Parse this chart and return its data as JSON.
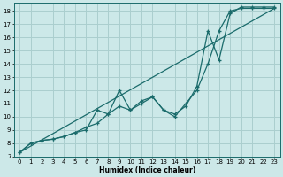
{
  "xlabel": "Humidex (Indice chaleur)",
  "background_color": "#cce8e8",
  "grid_color": "#aacece",
  "line_color": "#1a6b6b",
  "xlim": [
    -0.5,
    23.5
  ],
  "ylim": [
    7,
    18.6
  ],
  "x_ticks": [
    0,
    1,
    2,
    3,
    4,
    5,
    6,
    7,
    8,
    9,
    10,
    11,
    12,
    13,
    14,
    15,
    16,
    17,
    18,
    19,
    20,
    21,
    22,
    23
  ],
  "y_ticks": [
    7,
    8,
    9,
    10,
    11,
    12,
    13,
    14,
    15,
    16,
    17,
    18
  ],
  "straight_line": [
    [
      0,
      7.3
    ],
    [
      23,
      18.2
    ]
  ],
  "line2_x": [
    0,
    1,
    2,
    3,
    4,
    5,
    6,
    7,
    8,
    9,
    10,
    11,
    12,
    13,
    14,
    15,
    16,
    17,
    18,
    19,
    20,
    21,
    22,
    23
  ],
  "line2_y": [
    7.3,
    8.0,
    8.2,
    8.3,
    8.5,
    8.8,
    9.2,
    9.5,
    10.2,
    12.0,
    10.5,
    11.0,
    11.5,
    10.5,
    10.0,
    11.0,
    12.0,
    14.0,
    16.5,
    18.0,
    18.2,
    18.2,
    18.2,
    18.2
  ],
  "line3_x": [
    0,
    1,
    2,
    3,
    4,
    5,
    6,
    7,
    8,
    9,
    10,
    11,
    12,
    13,
    14,
    15,
    16,
    17,
    18,
    19,
    20,
    21,
    22,
    23
  ],
  "line3_y": [
    7.3,
    8.0,
    8.2,
    8.3,
    8.5,
    8.8,
    9.0,
    10.5,
    10.2,
    10.8,
    10.5,
    11.2,
    11.5,
    10.5,
    10.2,
    10.8,
    12.3,
    16.5,
    14.3,
    17.8,
    18.3,
    18.3,
    18.3,
    18.3
  ]
}
